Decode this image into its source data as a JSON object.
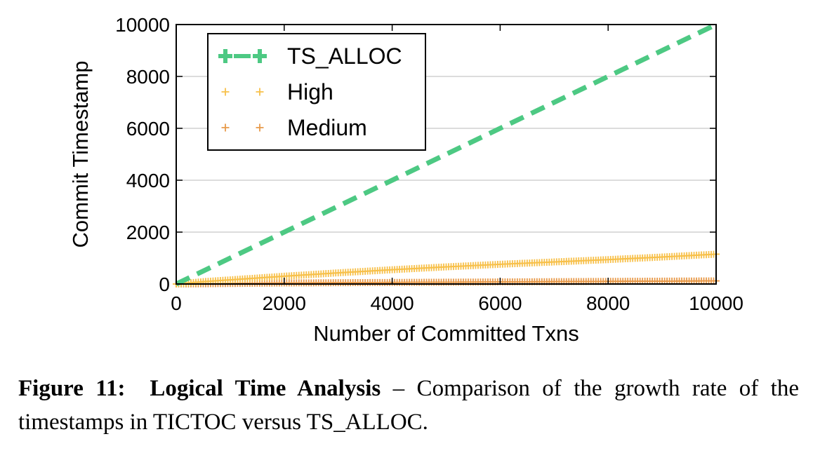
{
  "chart_data": {
    "type": "scatter",
    "title": "",
    "xlabel": "Number of Committed Txns",
    "ylabel": "Commit Timestamp",
    "xlim": [
      0,
      10000
    ],
    "ylim": [
      0,
      10000
    ],
    "xticks": [
      "0",
      "2000",
      "4000",
      "6000",
      "8000",
      "10000"
    ],
    "yticks": [
      "0",
      "2000",
      "4000",
      "6000",
      "8000",
      "10000"
    ],
    "grid": "horizontal",
    "legend_position": "top-left",
    "series": [
      {
        "name": "TS_ALLOC",
        "style": "dashed-line",
        "color": "#4DC983",
        "x": [
          0,
          10000
        ],
        "y": [
          0,
          10000
        ]
      },
      {
        "name": "High",
        "style": "plus-markers",
        "color": "#F7C04A",
        "x": [
          0,
          500,
          1000,
          2000,
          3000,
          4000,
          5000,
          6000,
          7000,
          8000,
          9000,
          10000
        ],
        "y": [
          0,
          90,
          160,
          300,
          430,
          550,
          660,
          760,
          850,
          940,
          1040,
          1150
        ]
      },
      {
        "name": "Medium",
        "style": "plus-markers",
        "color": "#E89A4A",
        "x": [
          0,
          2000,
          4000,
          6000,
          8000,
          10000
        ],
        "y": [
          0,
          40,
          60,
          80,
          100,
          120
        ]
      }
    ]
  },
  "caption": {
    "label": "Figure 11:",
    "title": "Logical Time Analysis",
    "text": " – Comparison of the growth rate of the timestamps in TICTOC versus TS_ALLOC."
  }
}
